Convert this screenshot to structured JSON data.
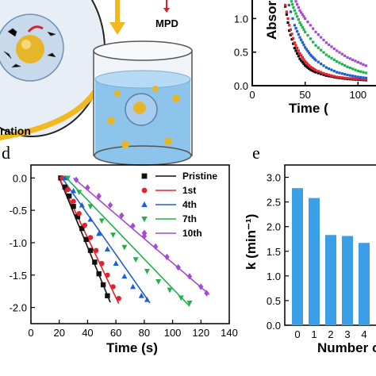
{
  "panel_letters": {
    "d": "d",
    "e": "e"
  },
  "illustration": {
    "mpd_label": "MPD",
    "ration_text": "ration"
  },
  "chart_data": [
    {
      "id": "top-right",
      "type": "scatter",
      "xlabel": "Time (",
      "ylabel": "Absorban",
      "xlim": [
        0,
        120
      ],
      "ylim": [
        0,
        1.3
      ],
      "xticks": [
        "0",
        "50",
        "100"
      ],
      "yticks": [
        "0.0",
        "0.5",
        "1.0"
      ],
      "colors": {
        "Pristine": "#111111",
        "1st": "#e8202a",
        "4th": "#1f5fd6",
        "7th": "#22b14c",
        "10th": "#a64ad4"
      },
      "series": [
        {
          "name": "Pristine",
          "x": [
            30,
            35,
            40,
            45,
            50,
            55,
            60,
            70,
            80,
            90,
            100,
            110
          ],
          "y": [
            1.3,
            0.82,
            0.56,
            0.4,
            0.3,
            0.24,
            0.2,
            0.15,
            0.12,
            0.1,
            0.09,
            0.08
          ]
        },
        {
          "name": "1st",
          "x": [
            30,
            35,
            40,
            45,
            50,
            55,
            60,
            70,
            80,
            90,
            100,
            110
          ],
          "y": [
            1.3,
            0.9,
            0.64,
            0.48,
            0.36,
            0.28,
            0.23,
            0.17,
            0.13,
            0.11,
            0.1,
            0.09
          ]
        },
        {
          "name": "4th",
          "x": [
            33,
            40,
            45,
            50,
            55,
            60,
            70,
            80,
            90,
            100,
            110
          ],
          "y": [
            1.3,
            0.9,
            0.72,
            0.57,
            0.46,
            0.38,
            0.27,
            0.2,
            0.16,
            0.13,
            0.11
          ]
        },
        {
          "name": "7th",
          "x": [
            36,
            40,
            45,
            50,
            60,
            70,
            80,
            90,
            100,
            110
          ],
          "y": [
            1.3,
            1.12,
            0.94,
            0.8,
            0.6,
            0.46,
            0.36,
            0.28,
            0.22,
            0.18
          ]
        },
        {
          "name": "10th",
          "x": [
            40,
            45,
            50,
            60,
            70,
            80,
            90,
            100,
            110
          ],
          "y": [
            1.3,
            1.12,
            1.0,
            0.8,
            0.64,
            0.52,
            0.42,
            0.35,
            0.28
          ]
        }
      ]
    },
    {
      "id": "d",
      "type": "scatter",
      "xlabel": "Time (s)",
      "ylabel": "",
      "xlim": [
        0,
        140
      ],
      "ylim": [
        -2.25,
        0.2
      ],
      "xticks": [
        "0",
        "20",
        "40",
        "60",
        "80",
        "100",
        "120",
        "140"
      ],
      "yticks": [
        "0.0",
        "-0.5",
        "-1.0",
        "-1.5",
        "-2.0"
      ],
      "legend": [
        "Pristine",
        "1st",
        "4th",
        "7th",
        "10th"
      ],
      "series": [
        {
          "name": "Pristine",
          "color": "#111111",
          "marker": "square",
          "x": [
            21,
            24,
            27,
            30,
            33,
            36,
            39,
            42,
            45,
            48,
            51,
            54
          ],
          "y": [
            0.0,
            -0.14,
            -0.28,
            -0.44,
            -0.6,
            -0.78,
            -0.95,
            -1.12,
            -1.3,
            -1.48,
            -1.65,
            -1.82
          ],
          "fit": [
            [
              20,
              0.0
            ],
            [
              56,
              -1.92
            ]
          ]
        },
        {
          "name": "1st",
          "color": "#e8202a",
          "marker": "circle",
          "x": [
            22,
            26,
            30,
            34,
            38,
            42,
            46,
            50,
            54,
            58,
            62
          ],
          "y": [
            0.0,
            -0.18,
            -0.36,
            -0.55,
            -0.73,
            -0.92,
            -1.12,
            -1.32,
            -1.5,
            -1.68,
            -1.86
          ],
          "fit": [
            [
              20,
              0.0
            ],
            [
              62,
              -1.94
            ]
          ]
        },
        {
          "name": "4th",
          "color": "#1f5fd6",
          "marker": "triangle-up",
          "x": [
            24,
            30,
            36,
            42,
            48,
            54,
            60,
            66,
            72,
            78,
            82
          ],
          "y": [
            0.0,
            -0.2,
            -0.42,
            -0.64,
            -0.86,
            -1.1,
            -1.32,
            -1.52,
            -1.68,
            -1.82,
            -1.88
          ],
          "fit": [
            [
              22,
              0.0
            ],
            [
              84,
              -1.93
            ]
          ]
        },
        {
          "name": "7th",
          "color": "#22b14c",
          "marker": "triangle-down",
          "x": [
            26,
            34,
            42,
            50,
            58,
            66,
            74,
            82,
            90,
            98,
            106,
            112
          ],
          "y": [
            0.0,
            -0.22,
            -0.44,
            -0.66,
            -0.88,
            -1.07,
            -1.26,
            -1.44,
            -1.6,
            -1.73,
            -1.85,
            -1.93
          ],
          "fit": [
            [
              25,
              0.0
            ],
            [
              112,
              -1.98
            ]
          ]
        },
        {
          "name": "10th",
          "color": "#a64ad4",
          "marker": "diamond",
          "x": [
            32,
            40,
            48,
            56,
            64,
            72,
            80,
            88,
            96,
            104,
            112,
            120,
            124
          ],
          "y": [
            -0.03,
            -0.15,
            -0.28,
            -0.42,
            -0.58,
            -0.74,
            -0.9,
            -1.06,
            -1.22,
            -1.38,
            -1.52,
            -1.68,
            -1.78
          ],
          "fit": [
            [
              30,
              0.0
            ],
            [
              126,
              -1.8
            ]
          ]
        }
      ]
    },
    {
      "id": "e",
      "type": "bar",
      "ylabel": "k (min⁻¹)",
      "xlabel": "Number o",
      "categories": [
        "0",
        "1",
        "2",
        "3",
        "4"
      ],
      "values": [
        2.78,
        2.58,
        1.83,
        1.81,
        1.67
      ],
      "ylim": [
        0.0,
        3.25
      ],
      "yticks": [
        "0.0",
        "0.5",
        "1.0",
        "1.5",
        "2.0",
        "2.5",
        "3.0"
      ],
      "bar_color": "#3a9fe6"
    }
  ]
}
